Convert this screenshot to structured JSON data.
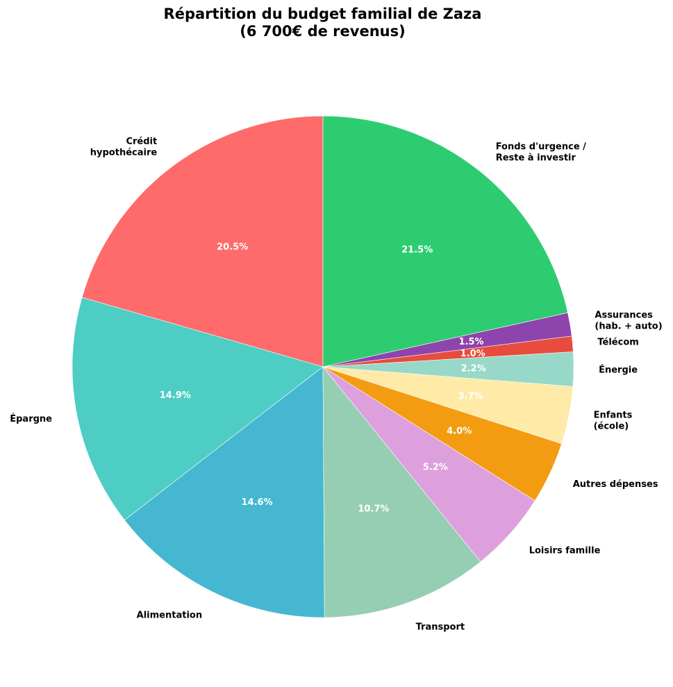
{
  "chart_data": {
    "type": "pie",
    "title": "Répartition du budget familial de Zaza",
    "subtitle": "(6 700€ de revenus)",
    "start_angle_deg": 90,
    "direction": "counterclockwise",
    "slices": [
      {
        "label": [
          "Crédit",
          "hypothécaire"
        ],
        "value": 20.5,
        "pct_label": "20.5%",
        "color": "#ff6b6b",
        "align": "end"
      },
      {
        "label": [
          "Épargne"
        ],
        "value": 14.9,
        "pct_label": "14.9%",
        "color": "#4ecdc4",
        "align": "end"
      },
      {
        "label": [
          "Alimentation"
        ],
        "value": 14.6,
        "pct_label": "14.6%",
        "color": "#45b7d1",
        "align": "end"
      },
      {
        "label": [
          "Transport"
        ],
        "value": 10.7,
        "pct_label": "10.7%",
        "color": "#96ceb4",
        "align": "start"
      },
      {
        "label": [
          "Loisirs famille"
        ],
        "value": 5.2,
        "pct_label": "5.2%",
        "color": "#dda0dd",
        "align": "start"
      },
      {
        "label": [
          "Autres dépenses"
        ],
        "value": 4.0,
        "pct_label": "4.0%",
        "color": "#f39c12",
        "align": "start"
      },
      {
        "label": [
          "Enfants",
          "(école)"
        ],
        "value": 3.7,
        "pct_label": "3.7%",
        "color": "#ffeaa7",
        "align": "start"
      },
      {
        "label": [
          "Énergie"
        ],
        "value": 2.2,
        "pct_label": "2.2%",
        "color": "#98d8c8",
        "align": "start"
      },
      {
        "label": [
          "Télécom"
        ],
        "value": 1.0,
        "pct_label": "1.0%",
        "color": "#e74c3c",
        "align": "start"
      },
      {
        "label": [
          "Assurances",
          "(hab. + auto)"
        ],
        "value": 1.5,
        "pct_label": "1.5%",
        "color": "#8e44ad",
        "align": "start"
      },
      {
        "label": [
          "Fonds d'urgence /",
          "Reste à investir"
        ],
        "value": 21.5,
        "pct_label": "21.5%",
        "color": "#2ecc71",
        "align": "start"
      }
    ]
  }
}
